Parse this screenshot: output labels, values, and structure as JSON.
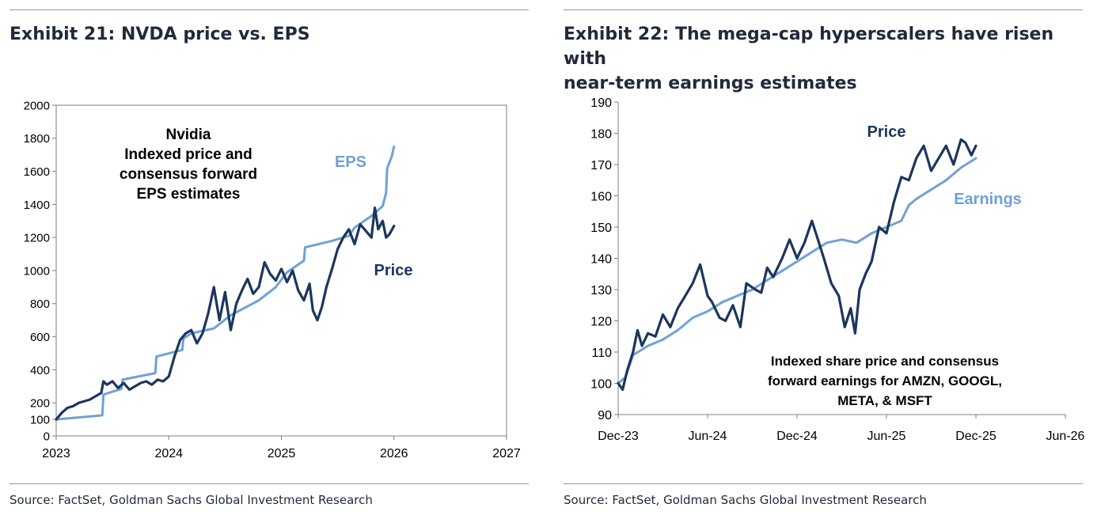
{
  "exhibits": [
    {
      "title": "Exhibit 21: NVDA price vs. EPS",
      "source": "Source: FactSet, Goldman Sachs Global Investment Research",
      "annotation_lines": [
        "Nvidia",
        "Indexed price and",
        "consensus forward",
        "EPS estimates"
      ]
    },
    {
      "title_lines": [
        "Exhibit 22: The mega-cap hyperscalers have risen with",
        "near-term earnings estimates"
      ],
      "source": "Source: FactSet, Goldman Sachs Global Investment Research",
      "annotation_lines": [
        "Indexed share price and consensus",
        "forward earnings for AMZN, GOOGL,",
        "META, & MSFT"
      ]
    }
  ],
  "colors": {
    "price": "#1b365d",
    "eps": "#6fa1d8",
    "label_dark": "#1b365d",
    "label_light": "#6fa1d8",
    "axis": "#7f7f7f"
  },
  "chart_data": [
    {
      "type": "line",
      "title": "Exhibit 21: NVDA price vs. EPS",
      "xlim": [
        2023,
        2027
      ],
      "ylim": [
        0,
        2000
      ],
      "x_ticks": [
        2023,
        2024,
        2025,
        2026,
        2027
      ],
      "x_tick_labels": [
        "2023",
        "2024",
        "2025",
        "2026",
        "2027"
      ],
      "y_ticks": [
        0,
        100,
        200,
        400,
        600,
        800,
        1000,
        1200,
        1400,
        1600,
        1800,
        2000
      ],
      "y_tick_labels": [
        "0",
        "100",
        "200",
        "400",
        "600",
        "800",
        "1000",
        "1200",
        "1400",
        "1600",
        "1800",
        "2000"
      ],
      "grid": false,
      "series": [
        {
          "name": "EPS",
          "label": "EPS",
          "x": [
            2023.0,
            2023.25,
            2023.41,
            2023.42,
            2023.58,
            2023.59,
            2023.88,
            2023.89,
            2024.12,
            2024.13,
            2024.2,
            2024.4,
            2024.55,
            2024.8,
            2024.95,
            2025.05,
            2025.2,
            2025.21,
            2025.45,
            2025.6,
            2025.65,
            2025.8,
            2025.9,
            2025.93,
            2025.94,
            2025.98,
            2026.0
          ],
          "y": [
            100,
            115,
            125,
            250,
            285,
            340,
            380,
            480,
            520,
            590,
            620,
            650,
            730,
            820,
            900,
            990,
            1060,
            1140,
            1180,
            1210,
            1260,
            1330,
            1390,
            1470,
            1620,
            1690,
            1750
          ]
        },
        {
          "name": "Price",
          "label": "Price",
          "x": [
            2023.0,
            2023.05,
            2023.1,
            2023.15,
            2023.2,
            2023.25,
            2023.3,
            2023.35,
            2023.4,
            2023.42,
            2023.45,
            2023.5,
            2023.55,
            2023.6,
            2023.65,
            2023.7,
            2023.75,
            2023.8,
            2023.85,
            2023.9,
            2023.95,
            2024.0,
            2024.05,
            2024.1,
            2024.15,
            2024.2,
            2024.25,
            2024.3,
            2024.35,
            2024.4,
            2024.45,
            2024.5,
            2024.55,
            2024.6,
            2024.65,
            2024.7,
            2024.75,
            2024.8,
            2024.85,
            2024.9,
            2024.95,
            2025.0,
            2025.05,
            2025.1,
            2025.15,
            2025.2,
            2025.25,
            2025.28,
            2025.32,
            2025.36,
            2025.4,
            2025.45,
            2025.5,
            2025.55,
            2025.6,
            2025.65,
            2025.7,
            2025.75,
            2025.8,
            2025.83,
            2025.86,
            2025.9,
            2025.93,
            2025.96,
            2026.0
          ],
          "y": [
            100,
            140,
            170,
            180,
            200,
            210,
            220,
            240,
            260,
            330,
            310,
            330,
            290,
            320,
            280,
            300,
            320,
            330,
            310,
            340,
            330,
            360,
            480,
            580,
            620,
            640,
            560,
            620,
            740,
            900,
            700,
            870,
            640,
            800,
            880,
            950,
            860,
            900,
            1050,
            980,
            940,
            1010,
            930,
            1000,
            880,
            820,
            920,
            760,
            700,
            780,
            900,
            1010,
            1130,
            1200,
            1250,
            1160,
            1280,
            1240,
            1200,
            1380,
            1250,
            1300,
            1200,
            1220,
            1270
          ]
        }
      ],
      "annotations": [
        "Nvidia",
        "Indexed price and",
        "consensus forward",
        "EPS estimates"
      ]
    },
    {
      "type": "line",
      "title": "Exhibit 22: The mega-cap hyperscalers have risen with near-term earnings estimates",
      "xlim": [
        0,
        30
      ],
      "ylim": [
        90,
        190
      ],
      "x_ticks": [
        0,
        6,
        12,
        18,
        24,
        30
      ],
      "x_tick_labels": [
        "Dec-23",
        "Jun-24",
        "Dec-24",
        "Jun-25",
        "Dec-25",
        "Jun-26"
      ],
      "y_ticks": [
        90,
        100,
        110,
        120,
        130,
        140,
        150,
        160,
        170,
        180,
        190
      ],
      "y_tick_labels": [
        "90",
        "100",
        "110",
        "120",
        "130",
        "140",
        "150",
        "160",
        "170",
        "180",
        "190"
      ],
      "grid": false,
      "series": [
        {
          "name": "Earnings",
          "label": "Earnings",
          "x": [
            0,
            0.5,
            1,
            2,
            3,
            4,
            5,
            6,
            7,
            8,
            9,
            10,
            11,
            12,
            13,
            14,
            15,
            16,
            17,
            18,
            19,
            19.5,
            20,
            21,
            22,
            23,
            24
          ],
          "y": [
            100,
            102,
            109,
            112,
            114,
            117,
            121,
            123,
            126,
            128,
            130,
            133,
            136,
            139,
            142,
            145,
            146,
            145,
            148,
            150,
            152,
            157,
            159,
            162,
            165,
            169,
            172
          ]
        },
        {
          "name": "Price",
          "label": "Price",
          "x": [
            0,
            0.3,
            0.6,
            1,
            1.3,
            1.6,
            2,
            2.5,
            3,
            3.5,
            4,
            4.5,
            5,
            5.5,
            6,
            6.3,
            6.8,
            7.2,
            7.7,
            8.2,
            8.6,
            9.2,
            9.6,
            10,
            10.4,
            11,
            11.5,
            12,
            12.5,
            13,
            13.4,
            13.8,
            14.3,
            14.8,
            15.2,
            15.6,
            15.9,
            16.2,
            16.6,
            17,
            17.5,
            18,
            18.5,
            19,
            19.5,
            20,
            20.5,
            21,
            21.5,
            22,
            22.5,
            23,
            23.3,
            23.7,
            24
          ],
          "y": [
            100,
            98,
            104,
            110,
            117,
            112,
            116,
            115,
            122,
            118,
            124,
            128,
            132,
            138,
            128,
            126,
            121,
            120,
            125,
            118,
            132,
            130,
            129,
            137,
            134,
            140,
            146,
            140,
            145,
            152,
            146,
            140,
            132,
            128,
            118,
            124,
            116,
            130,
            135,
            139,
            150,
            148,
            158,
            166,
            165,
            172,
            176,
            168,
            172,
            176,
            170,
            178,
            177,
            173,
            176
          ]
        }
      ],
      "annotations": [
        "Indexed share price and consensus",
        "forward earnings for AMZN, GOOGL,",
        "META, & MSFT"
      ]
    }
  ]
}
